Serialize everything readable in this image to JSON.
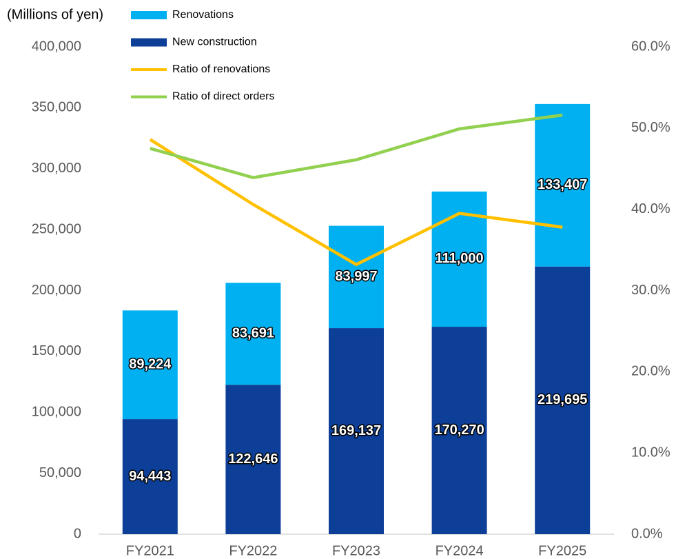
{
  "chart_data": {
    "type": "bar",
    "y_label": "(Millions of yen)",
    "categories": [
      "FY2021",
      "FY2022",
      "FY2023",
      "FY2024",
      "FY2025"
    ],
    "series": [
      {
        "name": "New construction",
        "color": "#0d3f98",
        "values": [
          94443,
          122646,
          169137,
          170270,
          219695
        ],
        "value_labels": [
          "94,443",
          "122,646",
          "169,137",
          "170,270",
          "219,695"
        ]
      },
      {
        "name": "Renovations",
        "color": "#00b0f0",
        "values": [
          89224,
          83691,
          83997,
          111000,
          133407
        ],
        "value_labels": [
          "89,224",
          "83,691",
          "83,997",
          "111,000",
          "133,407"
        ]
      },
      {
        "name": "Ratio of renovations",
        "type": "line",
        "axis": "y2",
        "color": "#ffc000",
        "values": [
          48.6,
          40.6,
          33.2,
          39.5,
          37.8
        ]
      },
      {
        "name": "Ratio of direct orders",
        "type": "line",
        "axis": "y2",
        "color": "#92d050",
        "values": [
          47.5,
          43.9,
          46.1,
          49.9,
          51.6
        ]
      }
    ],
    "stacked": true,
    "ylim": [
      0,
      400000
    ],
    "yticks": [
      0,
      {
        "value": 50000,
        "label": "50,000"
      },
      {
        "value": 100000,
        "label": "100,000"
      },
      {
        "value": 150000,
        "label": "150,000"
      },
      {
        "value": 200000,
        "label": "200,000"
      },
      {
        "value": 250000,
        "label": "250,000"
      },
      {
        "value": 300000,
        "label": "300,000"
      },
      {
        "value": 350000,
        "label": "350,000"
      },
      {
        "value": 400000,
        "label": "400,000"
      }
    ],
    "y2lim": [
      0,
      60
    ],
    "y2ticks": [
      {
        "value": 0,
        "label": "0.0%"
      },
      {
        "value": 10,
        "label": "10.0%"
      },
      {
        "value": 20,
        "label": "20.0%"
      },
      {
        "value": 30,
        "label": "30.0%"
      },
      {
        "value": 40,
        "label": "40.0%"
      },
      {
        "value": 50,
        "label": "50.0%"
      },
      {
        "value": 60,
        "label": "60.0%"
      }
    ],
    "grid": false
  }
}
